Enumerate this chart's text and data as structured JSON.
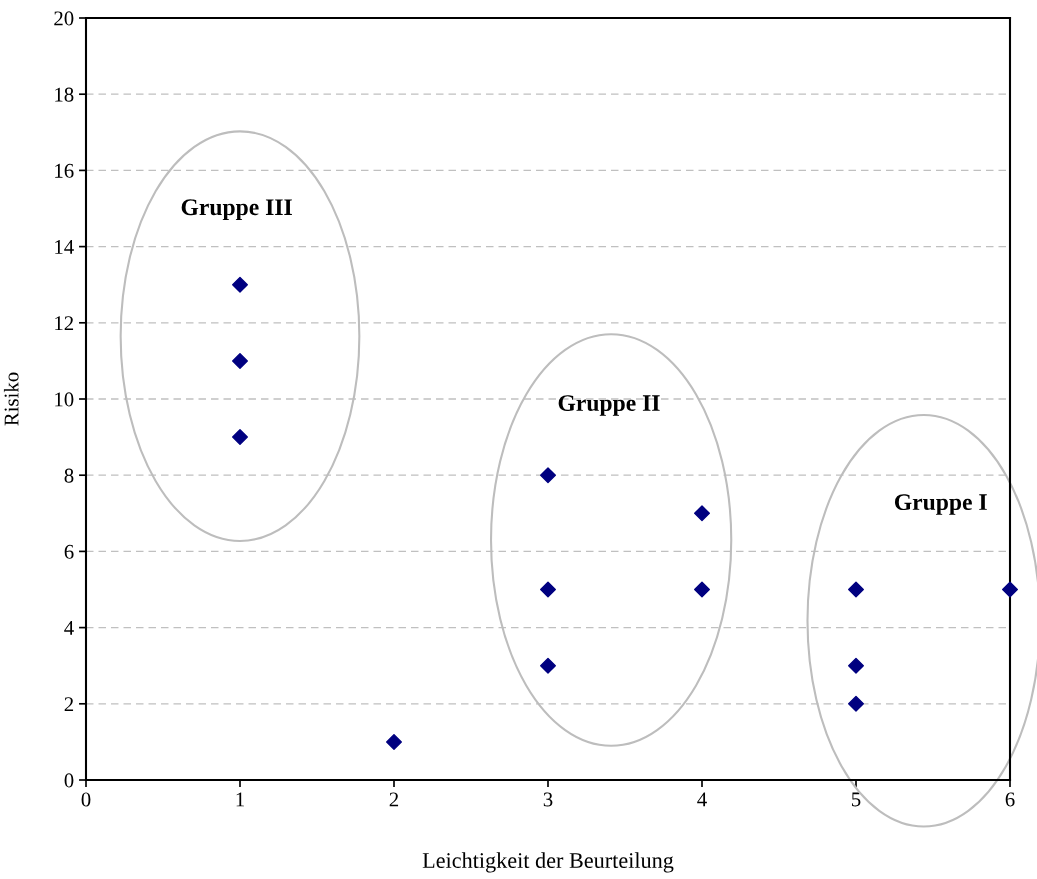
{
  "chart_data": {
    "type": "scatter",
    "xlabel": "Leichtigkeit der Beurteilung",
    "ylabel": "Risiko",
    "x": [
      1,
      1,
      1,
      2,
      3,
      3,
      3,
      4,
      4,
      5,
      5,
      5,
      6
    ],
    "values": [
      13,
      11,
      9,
      1,
      8,
      5,
      3,
      7,
      5,
      5,
      3,
      2,
      5
    ],
    "color": "#000080",
    "marker": "diamond",
    "xlim": [
      0,
      6
    ],
    "xticks": [
      0,
      1,
      2,
      3,
      4,
      5,
      6
    ],
    "ylim": [
      0,
      20
    ],
    "yticks": [
      0,
      2,
      4,
      6,
      8,
      10,
      12,
      14,
      16,
      18,
      20
    ],
    "grid": "y",
    "legend": false,
    "annotations": [
      "Gruppe III",
      "Gruppe II",
      "Gruppe I"
    ]
  }
}
